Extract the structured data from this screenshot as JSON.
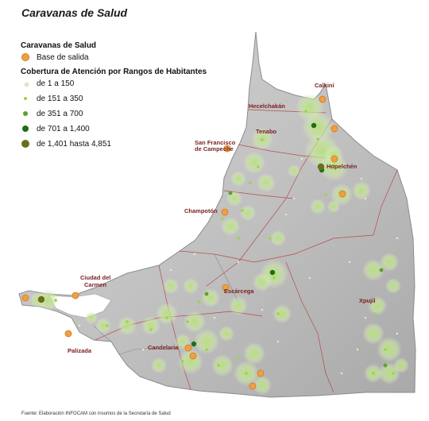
{
  "title": "Caravanas de Salud",
  "legend": {
    "group1_heading": "Caravanas de Salud",
    "base_label": "Base de salida",
    "group2_heading": "Cobertura de Atención por Rangos de Habitantes",
    "ranges": [
      {
        "label": "de 1 a 150",
        "color": "#e6efc8"
      },
      {
        "label": "de 151 a 350",
        "color": "#9bd44a"
      },
      {
        "label": "de 351 a 700",
        "color": "#5fa02a"
      },
      {
        "label": "de 701 a 1,400",
        "color": "#1f6e12"
      },
      {
        "label": "de 1,401 hasta 4,851",
        "color": "#6a6f1a"
      }
    ],
    "base_color": "#f0a040"
  },
  "cities": {
    "calkini": "Calkiní",
    "hecelchakan": "Hecelchakán",
    "tenabo": "Tenabo",
    "campeche_1": "San Francisco",
    "campeche_2": "de Campeche",
    "hopelchen": "Hopelchén",
    "champoton": "Champotón",
    "carmen_1": "Ciudad del",
    "carmen_2": "Carmen",
    "escarcega": "Escárcega",
    "xpujil": "Xpujil",
    "palizada": "Palizada",
    "candelaria": "Candelaria"
  },
  "source": "Fuente: Elaboración INFOCAM con insumos de la Secretaría de Salud",
  "colors": {
    "land": "#c4c4c4",
    "land_light": "#d8d8d8",
    "boundary": "#b23a3a",
    "river": "#8a8a8a",
    "coverage_glow": "#c6e89a",
    "city_label": "#7a1f1f"
  }
}
